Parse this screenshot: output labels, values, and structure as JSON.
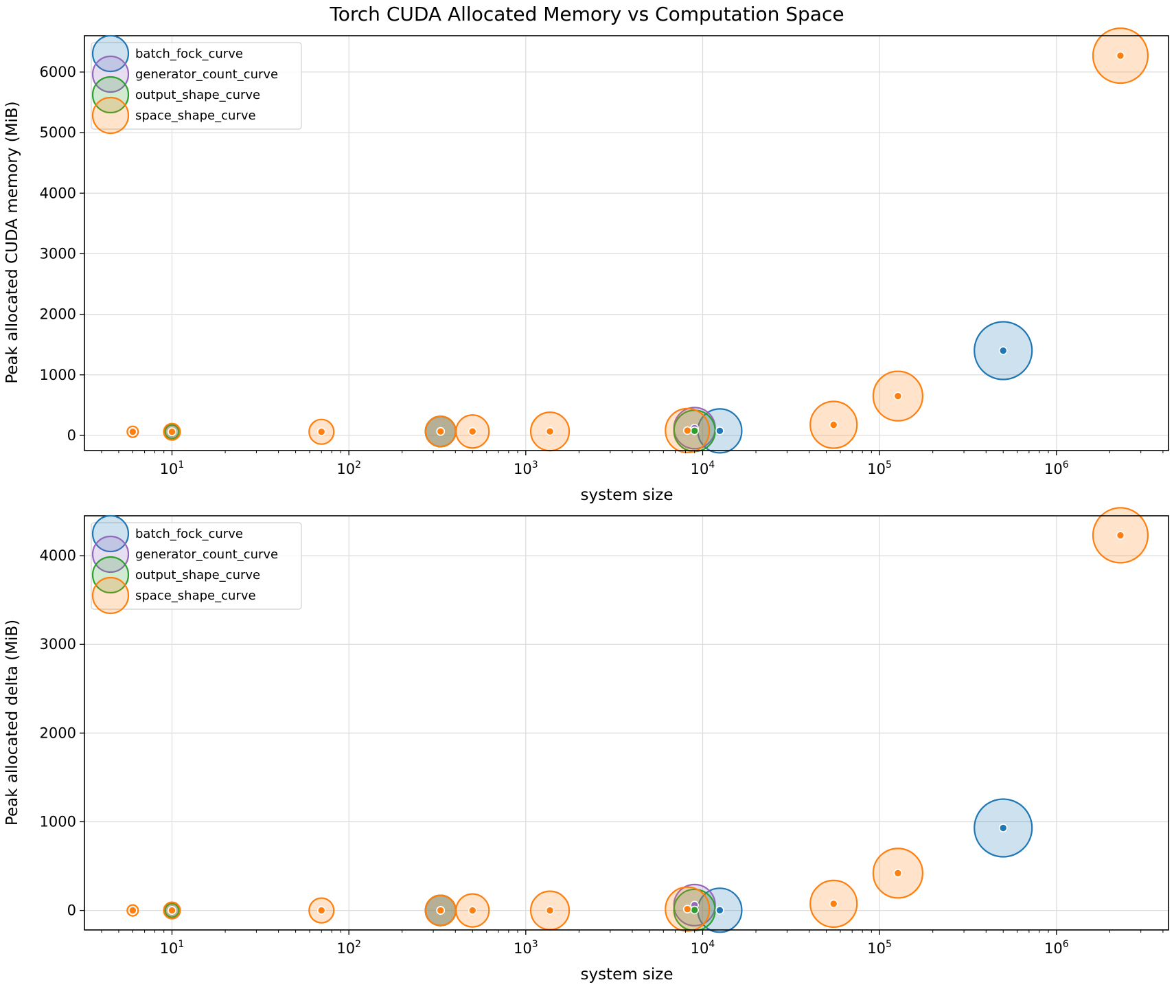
{
  "chart_data": {
    "title": "Torch CUDA Allocated Memory vs Computation Space",
    "type": "scatter",
    "x_scale": "log",
    "grid": true,
    "legend_position": "upper-left",
    "series_styles": [
      {
        "name": "batch_fock_curve",
        "color": "#1f77b4"
      },
      {
        "name": "generator_count_curve",
        "color": "#9467bd"
      },
      {
        "name": "output_shape_curve",
        "color": "#2ca02c"
      },
      {
        "name": "space_shape_curve",
        "color": "#ff7f0e"
      }
    ],
    "panels": [
      {
        "id": "top",
        "xlabel": "system size",
        "ylabel": "Peak allocated CUDA memory (MiB)",
        "xlim": [
          3.2,
          4300000
        ],
        "ylim": [
          -250,
          6600
        ],
        "yticks": [
          0,
          1000,
          2000,
          3000,
          4000,
          5000,
          6000
        ],
        "xticks_exp": [
          1,
          2,
          3,
          4,
          5,
          6
        ],
        "series": [
          {
            "name": "batch_fock_curve",
            "points": [
              {
                "x": 10,
                "y": 60,
                "size": 10
              },
              {
                "x": 330,
                "y": 65,
                "size": 22
              },
              {
                "x": 12500,
                "y": 75,
                "size": 32
              },
              {
                "x": 500000,
                "y": 1400,
                "size": 42
              }
            ]
          },
          {
            "name": "generator_count_curve",
            "points": [
              {
                "x": 10,
                "y": 60,
                "size": 10
              },
              {
                "x": 330,
                "y": 65,
                "size": 22
              },
              {
                "x": 9000,
                "y": 120,
                "size": 30
              }
            ]
          },
          {
            "name": "output_shape_curve",
            "points": [
              {
                "x": 10,
                "y": 60,
                "size": 10
              },
              {
                "x": 330,
                "y": 65,
                "size": 22
              },
              {
                "x": 9000,
                "y": 75,
                "size": 30
              }
            ]
          },
          {
            "name": "space_shape_curve",
            "points": [
              {
                "x": 6,
                "y": 60,
                "size": 8
              },
              {
                "x": 10,
                "y": 60,
                "size": 12
              },
              {
                "x": 70,
                "y": 60,
                "size": 18
              },
              {
                "x": 330,
                "y": 65,
                "size": 22
              },
              {
                "x": 500,
                "y": 65,
                "size": 24
              },
              {
                "x": 1370,
                "y": 65,
                "size": 28
              },
              {
                "x": 8200,
                "y": 80,
                "size": 32
              },
              {
                "x": 55000,
                "y": 175,
                "size": 34
              },
              {
                "x": 127000,
                "y": 650,
                "size": 36
              },
              {
                "x": 2300000,
                "y": 6270,
                "size": 40
              }
            ]
          }
        ]
      },
      {
        "id": "bottom",
        "xlabel": "system size",
        "ylabel": "Peak allocated delta (MiB)",
        "xlim": [
          3.2,
          4300000
        ],
        "ylim": [
          -220,
          4450
        ],
        "yticks": [
          0,
          1000,
          2000,
          3000,
          4000
        ],
        "xticks_exp": [
          1,
          2,
          3,
          4,
          5,
          6
        ],
        "series": [
          {
            "name": "batch_fock_curve",
            "points": [
              {
                "x": 10,
                "y": 0,
                "size": 10
              },
              {
                "x": 330,
                "y": 0,
                "size": 22
              },
              {
                "x": 12500,
                "y": 2,
                "size": 32
              },
              {
                "x": 500000,
                "y": 930,
                "size": 42
              }
            ]
          },
          {
            "name": "generator_count_curve",
            "points": [
              {
                "x": 10,
                "y": 0,
                "size": 10
              },
              {
                "x": 330,
                "y": 0,
                "size": 22
              },
              {
                "x": 9000,
                "y": 60,
                "size": 30
              }
            ]
          },
          {
            "name": "output_shape_curve",
            "points": [
              {
                "x": 10,
                "y": 0,
                "size": 10
              },
              {
                "x": 330,
                "y": 0,
                "size": 22
              },
              {
                "x": 9000,
                "y": 5,
                "size": 30
              }
            ]
          },
          {
            "name": "space_shape_curve",
            "points": [
              {
                "x": 6,
                "y": 0,
                "size": 8
              },
              {
                "x": 10,
                "y": 0,
                "size": 12
              },
              {
                "x": 70,
                "y": 0,
                "size": 18
              },
              {
                "x": 330,
                "y": 0,
                "size": 22
              },
              {
                "x": 500,
                "y": 0,
                "size": 24
              },
              {
                "x": 1370,
                "y": 0,
                "size": 28
              },
              {
                "x": 8200,
                "y": 15,
                "size": 32
              },
              {
                "x": 55000,
                "y": 75,
                "size": 34
              },
              {
                "x": 127000,
                "y": 420,
                "size": 36
              },
              {
                "x": 2300000,
                "y": 4230,
                "size": 40
              }
            ]
          }
        ]
      }
    ]
  }
}
